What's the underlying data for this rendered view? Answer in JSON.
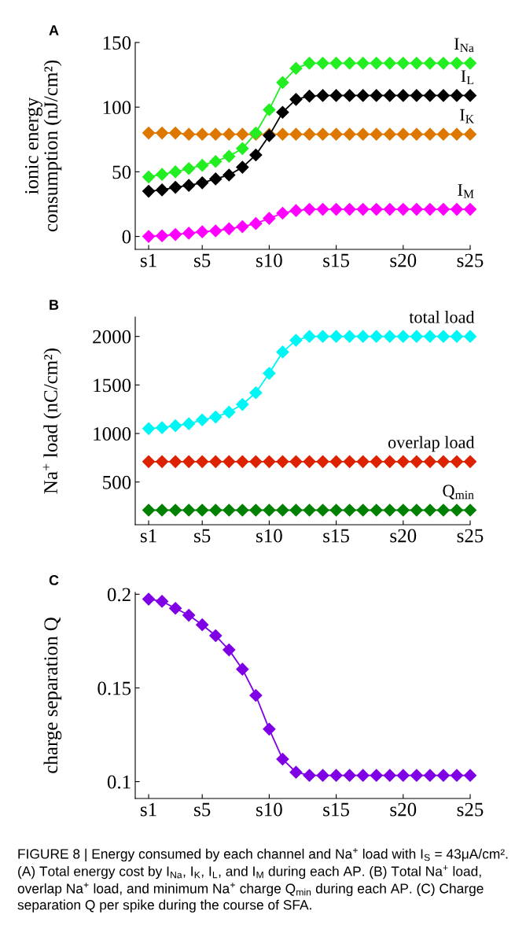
{
  "chart_data": [
    {
      "type": "line",
      "title": "A",
      "ylabel": "ionic energy\nconsumption (nJ/cm²)",
      "categories": [
        "s1",
        null,
        null,
        null,
        "s5",
        null,
        null,
        null,
        null,
        "s10",
        null,
        null,
        null,
        null,
        "s15",
        null,
        null,
        null,
        null,
        "s20",
        null,
        null,
        null,
        null,
        "s25"
      ],
      "ylim": [
        -10,
        150
      ],
      "yticks": [
        0,
        50,
        100,
        150
      ],
      "marker": "diamond",
      "line_style": "solid",
      "grid": false,
      "legend": false,
      "series": [
        {
          "name": "I$_{Na}$",
          "color": "#22ee22",
          "values": [
            46,
            48,
            50,
            52.5,
            55,
            58,
            62,
            68,
            80,
            98,
            119,
            130,
            134,
            134,
            134,
            134,
            134,
            134,
            134,
            134,
            134,
            134,
            134,
            134,
            134
          ]
        },
        {
          "name": "I$_{L}$",
          "color": "#000000",
          "values": [
            35,
            36,
            38,
            39.5,
            41.5,
            44.5,
            47.5,
            53.5,
            63,
            78,
            96,
            106,
            108.5,
            109,
            109,
            109,
            109,
            109,
            109,
            109,
            109,
            109,
            109,
            109,
            109
          ]
        },
        {
          "name": "I$_{K}$",
          "color": "#dd7700",
          "values": [
            80,
            80,
            80,
            79,
            79,
            79,
            79,
            79,
            79,
            79,
            79,
            79,
            79,
            79,
            79,
            79,
            79,
            79,
            79,
            79,
            79,
            79,
            79,
            79,
            79
          ]
        },
        {
          "name": "I$_{M}$",
          "color": "#ff00ff",
          "values": [
            0,
            0.5,
            1.5,
            2.5,
            3.6,
            4.3,
            5.9,
            7.6,
            10,
            14,
            18,
            20,
            21,
            21,
            21,
            21,
            21,
            21,
            21,
            21,
            21,
            21,
            21,
            21,
            21
          ]
        }
      ]
    },
    {
      "type": "line",
      "title": "B",
      "ylabel": "Na$^{+}$ load (nC/cm²)",
      "categories": [
        "s1",
        null,
        null,
        null,
        "s5",
        null,
        null,
        null,
        null,
        "s10",
        null,
        null,
        null,
        null,
        "s15",
        null,
        null,
        null,
        null,
        "s20",
        null,
        null,
        null,
        null,
        "s25"
      ],
      "ylim": [
        60,
        2200
      ],
      "yticks": [
        500,
        1000,
        1500,
        2000
      ],
      "marker": "diamond",
      "line_style": "solid",
      "grid": false,
      "legend": false,
      "series": [
        {
          "name": "total load",
          "color": "#00f5f5",
          "values": [
            1050,
            1060,
            1080,
            1100,
            1140,
            1170,
            1220,
            1300,
            1420,
            1620,
            1840,
            1960,
            2000,
            2000,
            2000,
            2000,
            2000,
            2000,
            2000,
            2000,
            2000,
            2000,
            2000,
            2000,
            2000
          ]
        },
        {
          "name": "overlap load",
          "color": "#dd2200",
          "values": [
            710,
            710,
            710,
            710,
            710,
            710,
            710,
            710,
            710,
            710,
            710,
            710,
            710,
            710,
            710,
            710,
            710,
            710,
            710,
            710,
            710,
            710,
            710,
            710,
            710
          ]
        },
        {
          "name": "Q$_{min}$",
          "color": "#008000",
          "values": [
            210,
            210,
            210,
            210,
            210,
            210,
            210,
            210,
            210,
            210,
            210,
            210,
            210,
            210,
            210,
            210,
            210,
            210,
            210,
            210,
            210,
            210,
            210,
            210,
            210
          ]
        }
      ]
    },
    {
      "type": "line",
      "title": "C",
      "ylabel": "charge separation Q",
      "categories": [
        "s1",
        null,
        null,
        null,
        "s5",
        null,
        null,
        null,
        null,
        "s10",
        null,
        null,
        null,
        null,
        "s15",
        null,
        null,
        null,
        null,
        "s20",
        null,
        null,
        null,
        null,
        "s25"
      ],
      "ylim": [
        0.091,
        0.201
      ],
      "yticks": [
        0.1,
        0.15,
        0.2
      ],
      "marker": "diamond",
      "line_style": "solid",
      "grid": false,
      "legend": false,
      "series": [
        {
          "color": "#8000e6",
          "values": [
            0.1974,
            0.1962,
            0.1925,
            0.1888,
            0.1837,
            0.1779,
            0.1703,
            0.16,
            0.146,
            0.128,
            0.112,
            0.105,
            0.1033,
            0.1033,
            0.1033,
            0.1033,
            0.1033,
            0.1033,
            0.1033,
            0.1033,
            0.1033,
            0.1033,
            0.1033,
            0.1033,
            0.1033
          ]
        }
      ],
      "annotations": [
        "FIGURE 8 | Energy consumed by each channel and Na$^{+}$ load with I$_{S}$ = 43μA/cm². (A) Total energy cost by I$_{Na}$, I$_{K}$, I$_{L}$, and I$_{M}$ during each AP. (B) Total Na$^{+}$ load, overlap Na$^{+}$ load, and minimum Na$^{+}$ charge Q$_{min}$ during each AP. (C) Charge separation Q per spike during the course of SFA."
      ]
    }
  ]
}
